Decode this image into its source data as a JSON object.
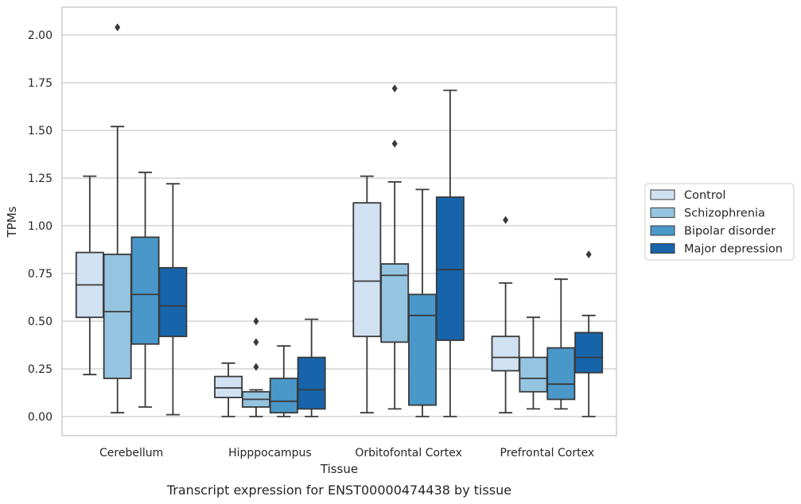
{
  "chart_data": {
    "type": "box",
    "xlabel": "Tissue",
    "ylabel": "TPMs",
    "caption": "Transcript expression for ENST00000474438 by tissue",
    "ylim": [
      -0.1,
      2.15
    ],
    "yticks": [
      "0.00",
      "0.25",
      "0.50",
      "0.75",
      "1.00",
      "1.25",
      "1.50",
      "1.75",
      "2.00"
    ],
    "grid": "horizontal",
    "legend_position": "right",
    "categories": [
      "Cerebellum",
      "Hipppocampus",
      "Orbitofontal Cortex",
      "Prefrontal Cortex"
    ],
    "series": [
      {
        "name": "Control",
        "color": "#d0e1f2",
        "boxes": [
          {
            "whislo": 0.22,
            "q1": 0.52,
            "med": 0.69,
            "q3": 0.86,
            "whishi": 1.26,
            "fliers": []
          },
          {
            "whislo": 0.0,
            "q1": 0.1,
            "med": 0.15,
            "q3": 0.21,
            "whishi": 0.28,
            "fliers": []
          },
          {
            "whislo": 0.02,
            "q1": 0.42,
            "med": 0.71,
            "q3": 1.12,
            "whishi": 1.26,
            "fliers": []
          },
          {
            "whislo": 0.02,
            "q1": 0.24,
            "med": 0.31,
            "q3": 0.42,
            "whishi": 0.7,
            "fliers": [
              1.03
            ]
          }
        ]
      },
      {
        "name": "Schizophrenia",
        "color": "#94c4df",
        "boxes": [
          {
            "whislo": 0.02,
            "q1": 0.2,
            "med": 0.55,
            "q3": 0.85,
            "whishi": 1.52,
            "fliers": [
              2.04
            ]
          },
          {
            "whislo": 0.0,
            "q1": 0.05,
            "med": 0.09,
            "q3": 0.13,
            "whishi": 0.14,
            "fliers": [
              0.26,
              0.39,
              0.5
            ]
          },
          {
            "whislo": 0.04,
            "q1": 0.39,
            "med": 0.74,
            "q3": 0.8,
            "whishi": 1.23,
            "fliers": [
              1.43,
              1.72
            ]
          },
          {
            "whislo": 0.04,
            "q1": 0.13,
            "med": 0.2,
            "q3": 0.31,
            "whishi": 0.52,
            "fliers": []
          }
        ]
      },
      {
        "name": "Bipolar disorder",
        "color": "#4a98c9",
        "boxes": [
          {
            "whislo": 0.05,
            "q1": 0.38,
            "med": 0.64,
            "q3": 0.94,
            "whishi": 1.28,
            "fliers": []
          },
          {
            "whislo": 0.0,
            "q1": 0.02,
            "med": 0.08,
            "q3": 0.2,
            "whishi": 0.37,
            "fliers": []
          },
          {
            "whislo": 0.0,
            "q1": 0.06,
            "med": 0.53,
            "q3": 0.64,
            "whishi": 1.19,
            "fliers": []
          },
          {
            "whislo": 0.04,
            "q1": 0.09,
            "med": 0.17,
            "q3": 0.36,
            "whishi": 0.72,
            "fliers": []
          }
        ]
      },
      {
        "name": "Major depression",
        "color": "#1764ab",
        "boxes": [
          {
            "whislo": 0.01,
            "q1": 0.42,
            "med": 0.58,
            "q3": 0.78,
            "whishi": 1.22,
            "fliers": []
          },
          {
            "whislo": 0.0,
            "q1": 0.04,
            "med": 0.14,
            "q3": 0.31,
            "whishi": 0.51,
            "fliers": []
          },
          {
            "whislo": 0.0,
            "q1": 0.4,
            "med": 0.77,
            "q3": 1.15,
            "whishi": 1.71,
            "fliers": []
          },
          {
            "whislo": 0.0,
            "q1": 0.23,
            "med": 0.31,
            "q3": 0.44,
            "whishi": 0.53,
            "fliers": [
              0.85
            ]
          }
        ]
      }
    ]
  }
}
